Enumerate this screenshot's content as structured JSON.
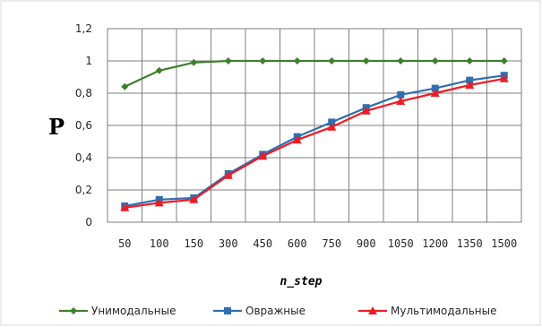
{
  "chart_data": {
    "type": "line",
    "title": "",
    "xlabel": "n_step",
    "ylabel": "P",
    "categories": [
      "50",
      "100",
      "150",
      "300",
      "450",
      "600",
      "750",
      "900",
      "1050",
      "1200",
      "1350",
      "1500"
    ],
    "ylim": [
      0,
      1.2
    ],
    "yticks": [
      "0",
      "0,2",
      "0,4",
      "0,6",
      "0,8",
      "1",
      "1,2"
    ],
    "grid": true,
    "legend_position": "bottom",
    "series": [
      {
        "name": "Унимодальные",
        "color": "#3f7f2f",
        "marker": "diamond",
        "values": [
          0.84,
          0.94,
          0.99,
          1.0,
          1.0,
          1.0,
          1.0,
          1.0,
          1.0,
          1.0,
          1.0,
          1.0
        ]
      },
      {
        "name": "Овражные",
        "color": "#2f6fb0",
        "marker": "square",
        "values": [
          0.1,
          0.14,
          0.15,
          0.3,
          0.42,
          0.53,
          0.62,
          0.71,
          0.79,
          0.83,
          0.88,
          0.91
        ]
      },
      {
        "name": "Мультимодальные",
        "color": "#ee1c25",
        "marker": "triangle",
        "values": [
          0.09,
          0.12,
          0.14,
          0.29,
          0.41,
          0.51,
          0.59,
          0.69,
          0.75,
          0.8,
          0.85,
          0.89
        ]
      }
    ]
  }
}
